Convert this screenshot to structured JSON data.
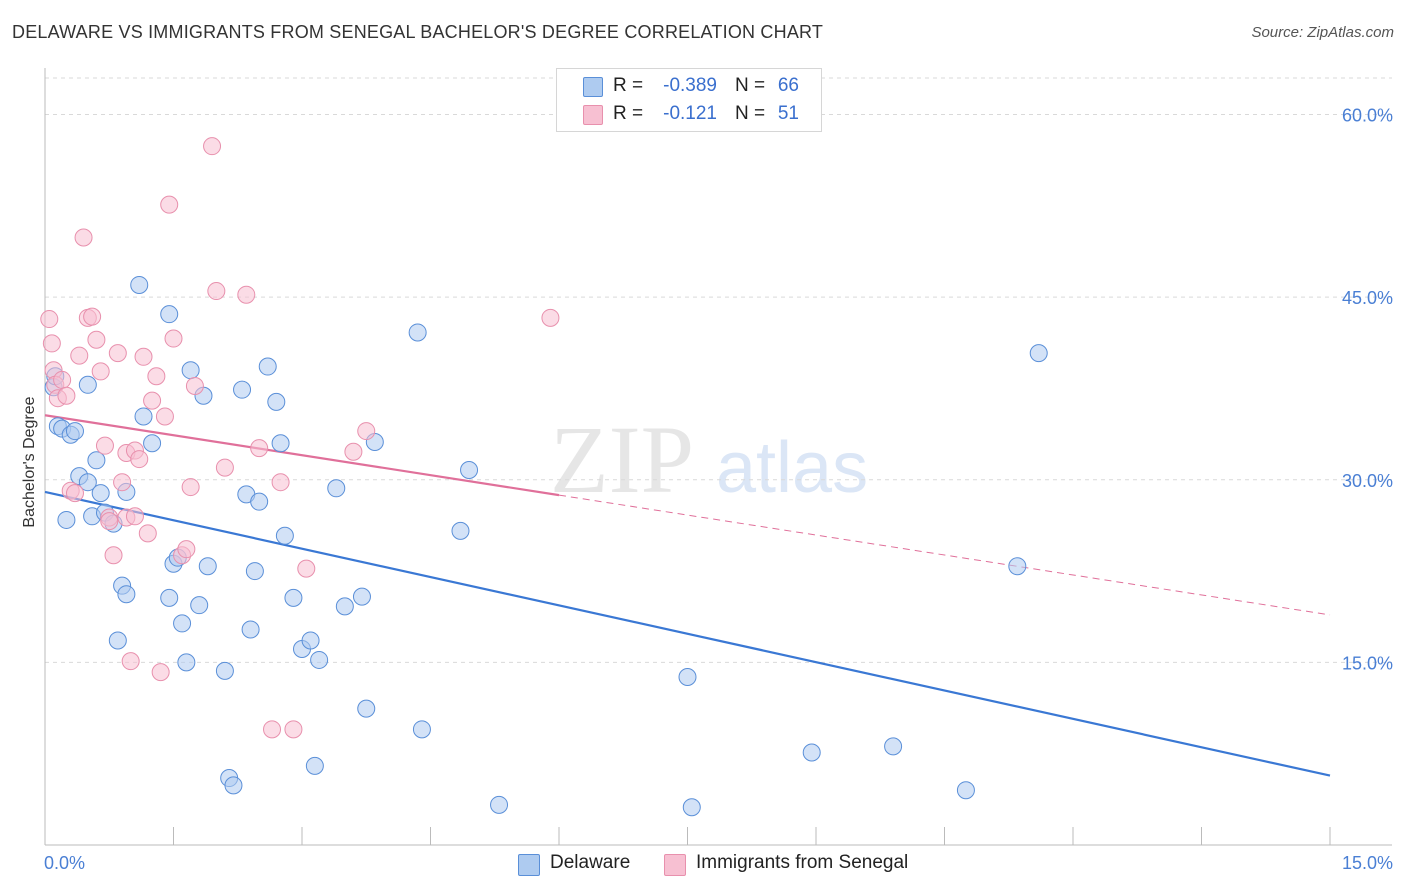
{
  "title": "DELAWARE VS IMMIGRANTS FROM SENEGAL BACHELOR'S DEGREE CORRELATION CHART",
  "source": "Source: ZipAtlas.com",
  "watermark": {
    "zip": "ZIP",
    "atlas": "atlas"
  },
  "colors": {
    "delaware_fill": "#aecbf0",
    "delaware_stroke": "#5a8fd8",
    "delaware_line": "#3a78d4",
    "senegal_fill": "#f7c0d2",
    "senegal_stroke": "#e890ad",
    "senegal_line": "#e0709a",
    "tick_text": "#4a7fd4",
    "grid": "#d9d9d9"
  },
  "stats": [
    {
      "r_label": "R =",
      "r_value": "-0.389",
      "n_label": "N =",
      "n_value": "66",
      "color": "#aecbf0",
      "border": "#5a8fd8"
    },
    {
      "r_label": "R =",
      "r_value": "-0.121",
      "n_label": "N =",
      "n_value": "51",
      "color": "#f7c0d2",
      "border": "#e890ad"
    }
  ],
  "legend": [
    {
      "label": "Delaware",
      "color": "#aecbf0",
      "border": "#5a8fd8"
    },
    {
      "label": "Immigrants from Senegal",
      "color": "#f7c0d2",
      "border": "#e890ad"
    }
  ],
  "chart_data": {
    "type": "scatter",
    "title": "DELAWARE VS IMMIGRANTS FROM SENEGAL BACHELOR'S DEGREE CORRELATION CHART",
    "xlabel": "",
    "ylabel": "Bachelor's Degree",
    "xlim": [
      0,
      15
    ],
    "ylim": [
      0,
      63
    ],
    "x_tick_labels": [
      "0.0%",
      "15.0%"
    ],
    "y_ticks": [
      15,
      30,
      45,
      60
    ],
    "y_tick_labels": [
      "15.0%",
      "30.0%",
      "45.0%",
      "60.0%"
    ],
    "grid": "horizontal dashed",
    "legend_position": "bottom-center",
    "series": [
      {
        "name": "Delaware",
        "trend": {
          "x": [
            0,
            15
          ],
          "y": [
            29.0,
            5.7
          ],
          "dashed_beyond_x": null
        },
        "points": [
          [
            0.1,
            37.6
          ],
          [
            0.12,
            38.5
          ],
          [
            0.15,
            34.4
          ],
          [
            0.2,
            34.2
          ],
          [
            0.25,
            26.7
          ],
          [
            0.3,
            33.7
          ],
          [
            0.35,
            34.0
          ],
          [
            0.4,
            30.3
          ],
          [
            0.5,
            29.8
          ],
          [
            0.55,
            27.0
          ],
          [
            0.6,
            31.6
          ],
          [
            0.65,
            28.9
          ],
          [
            0.7,
            27.3
          ],
          [
            0.8,
            26.4
          ],
          [
            0.85,
            16.8
          ],
          [
            0.9,
            21.3
          ],
          [
            0.95,
            20.6
          ],
          [
            0.5,
            37.8
          ],
          [
            1.1,
            46.0
          ],
          [
            1.15,
            35.2
          ],
          [
            1.25,
            33.0
          ],
          [
            1.45,
            20.3
          ],
          [
            1.5,
            23.1
          ],
          [
            1.55,
            23.6
          ],
          [
            1.6,
            18.2
          ],
          [
            1.65,
            15.0
          ],
          [
            1.7,
            39.0
          ],
          [
            1.8,
            19.7
          ],
          [
            1.85,
            36.9
          ],
          [
            1.9,
            22.9
          ],
          [
            2.1,
            14.3
          ],
          [
            2.15,
            5.5
          ],
          [
            2.2,
            4.9
          ],
          [
            2.3,
            37.4
          ],
          [
            2.35,
            28.8
          ],
          [
            2.4,
            17.7
          ],
          [
            2.45,
            22.5
          ],
          [
            2.5,
            28.2
          ],
          [
            2.6,
            39.3
          ],
          [
            2.7,
            36.4
          ],
          [
            2.75,
            33.0
          ],
          [
            2.8,
            25.4
          ],
          [
            2.9,
            20.3
          ],
          [
            3.0,
            16.1
          ],
          [
            3.1,
            16.8
          ],
          [
            3.15,
            6.5
          ],
          [
            3.2,
            15.2
          ],
          [
            3.4,
            29.3
          ],
          [
            3.5,
            19.6
          ],
          [
            3.7,
            20.4
          ],
          [
            3.75,
            11.2
          ],
          [
            3.85,
            33.1
          ],
          [
            4.35,
            42.1
          ],
          [
            4.4,
            9.5
          ],
          [
            4.85,
            25.8
          ],
          [
            4.95,
            30.8
          ],
          [
            5.3,
            3.3
          ],
          [
            7.5,
            13.8
          ],
          [
            7.55,
            3.1
          ],
          [
            8.95,
            7.6
          ],
          [
            9.9,
            8.1
          ],
          [
            10.75,
            4.5
          ],
          [
            11.35,
            22.9
          ],
          [
            11.6,
            40.4
          ],
          [
            1.45,
            43.6
          ],
          [
            0.95,
            29.0
          ]
        ]
      },
      {
        "name": "Immigrants from Senegal",
        "trend": {
          "x": [
            0,
            15
          ],
          "y": [
            35.3,
            18.9
          ],
          "dashed_beyond_x": 6
        },
        "points": [
          [
            0.05,
            43.2
          ],
          [
            0.08,
            41.2
          ],
          [
            0.1,
            39.0
          ],
          [
            0.12,
            37.8
          ],
          [
            0.15,
            36.7
          ],
          [
            0.2,
            38.2
          ],
          [
            0.25,
            36.9
          ],
          [
            0.3,
            29.1
          ],
          [
            0.35,
            28.9
          ],
          [
            0.4,
            40.2
          ],
          [
            0.45,
            49.9
          ],
          [
            0.5,
            43.3
          ],
          [
            0.55,
            43.4
          ],
          [
            0.6,
            41.5
          ],
          [
            0.65,
            38.9
          ],
          [
            0.7,
            32.8
          ],
          [
            0.75,
            26.9
          ],
          [
            0.8,
            23.8
          ],
          [
            0.85,
            40.4
          ],
          [
            0.9,
            29.8
          ],
          [
            0.95,
            32.2
          ],
          [
            1.0,
            15.1
          ],
          [
            1.05,
            32.4
          ],
          [
            1.1,
            31.7
          ],
          [
            1.15,
            40.1
          ],
          [
            1.2,
            25.6
          ],
          [
            1.25,
            36.5
          ],
          [
            1.3,
            38.5
          ],
          [
            1.35,
            14.2
          ],
          [
            1.4,
            35.2
          ],
          [
            1.45,
            52.6
          ],
          [
            1.5,
            41.6
          ],
          [
            1.6,
            23.8
          ],
          [
            1.65,
            24.3
          ],
          [
            1.7,
            29.4
          ],
          [
            1.75,
            37.7
          ],
          [
            1.95,
            57.4
          ],
          [
            2.0,
            45.5
          ],
          [
            2.1,
            31.0
          ],
          [
            2.35,
            45.2
          ],
          [
            2.5,
            32.6
          ],
          [
            2.65,
            9.5
          ],
          [
            2.75,
            29.8
          ],
          [
            2.9,
            9.5
          ],
          [
            3.05,
            22.7
          ],
          [
            3.6,
            32.3
          ],
          [
            3.75,
            34.0
          ],
          [
            5.9,
            43.3
          ],
          [
            0.95,
            26.9
          ],
          [
            1.05,
            27.0
          ],
          [
            0.75,
            26.6
          ]
        ]
      }
    ]
  }
}
